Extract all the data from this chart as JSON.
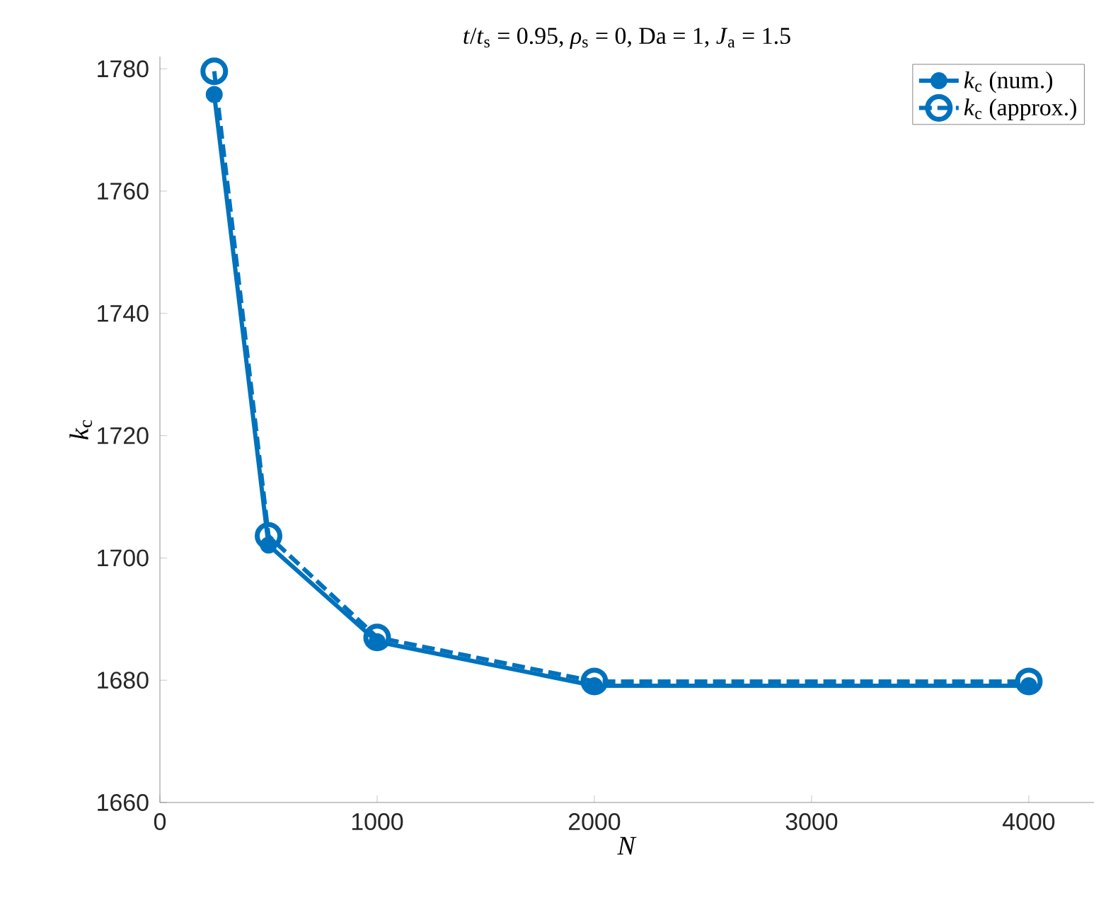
{
  "chart_data": {
    "type": "line",
    "title": "*t*/*t*$_{s}$ = 0.95, *ρ*$_{s}$ = 0, Da = 1, *J*$_{a}$ = 1.5",
    "xlabel": "*N*",
    "ylabel": "*k*$_{c}$",
    "x": [
      250,
      500,
      1000,
      2000,
      4000
    ],
    "series": [
      {
        "name": "*k*$_{c}$ (num.)",
        "color": "#0072bd",
        "marker": "circle",
        "line_style": "solid",
        "values": [
          1775.8,
          1702.1,
          1686.3,
          1679.1,
          1679.1
        ]
      },
      {
        "name": "*k*$_{c}$ (approx.)",
        "color": "#0072bd",
        "marker": "circle",
        "line_style": "dashed",
        "values": [
          1779.6,
          1703.6,
          1687.0,
          1679.8,
          1679.8
        ]
      }
    ],
    "xlim": [
      0,
      4300
    ],
    "ylim": [
      1660,
      1782
    ],
    "xticks": [
      0,
      1000,
      2000,
      3000,
      4000
    ],
    "yticks": [
      1660,
      1680,
      1700,
      1720,
      1740,
      1760,
      1780
    ],
    "grid": false,
    "legend": "top right"
  }
}
